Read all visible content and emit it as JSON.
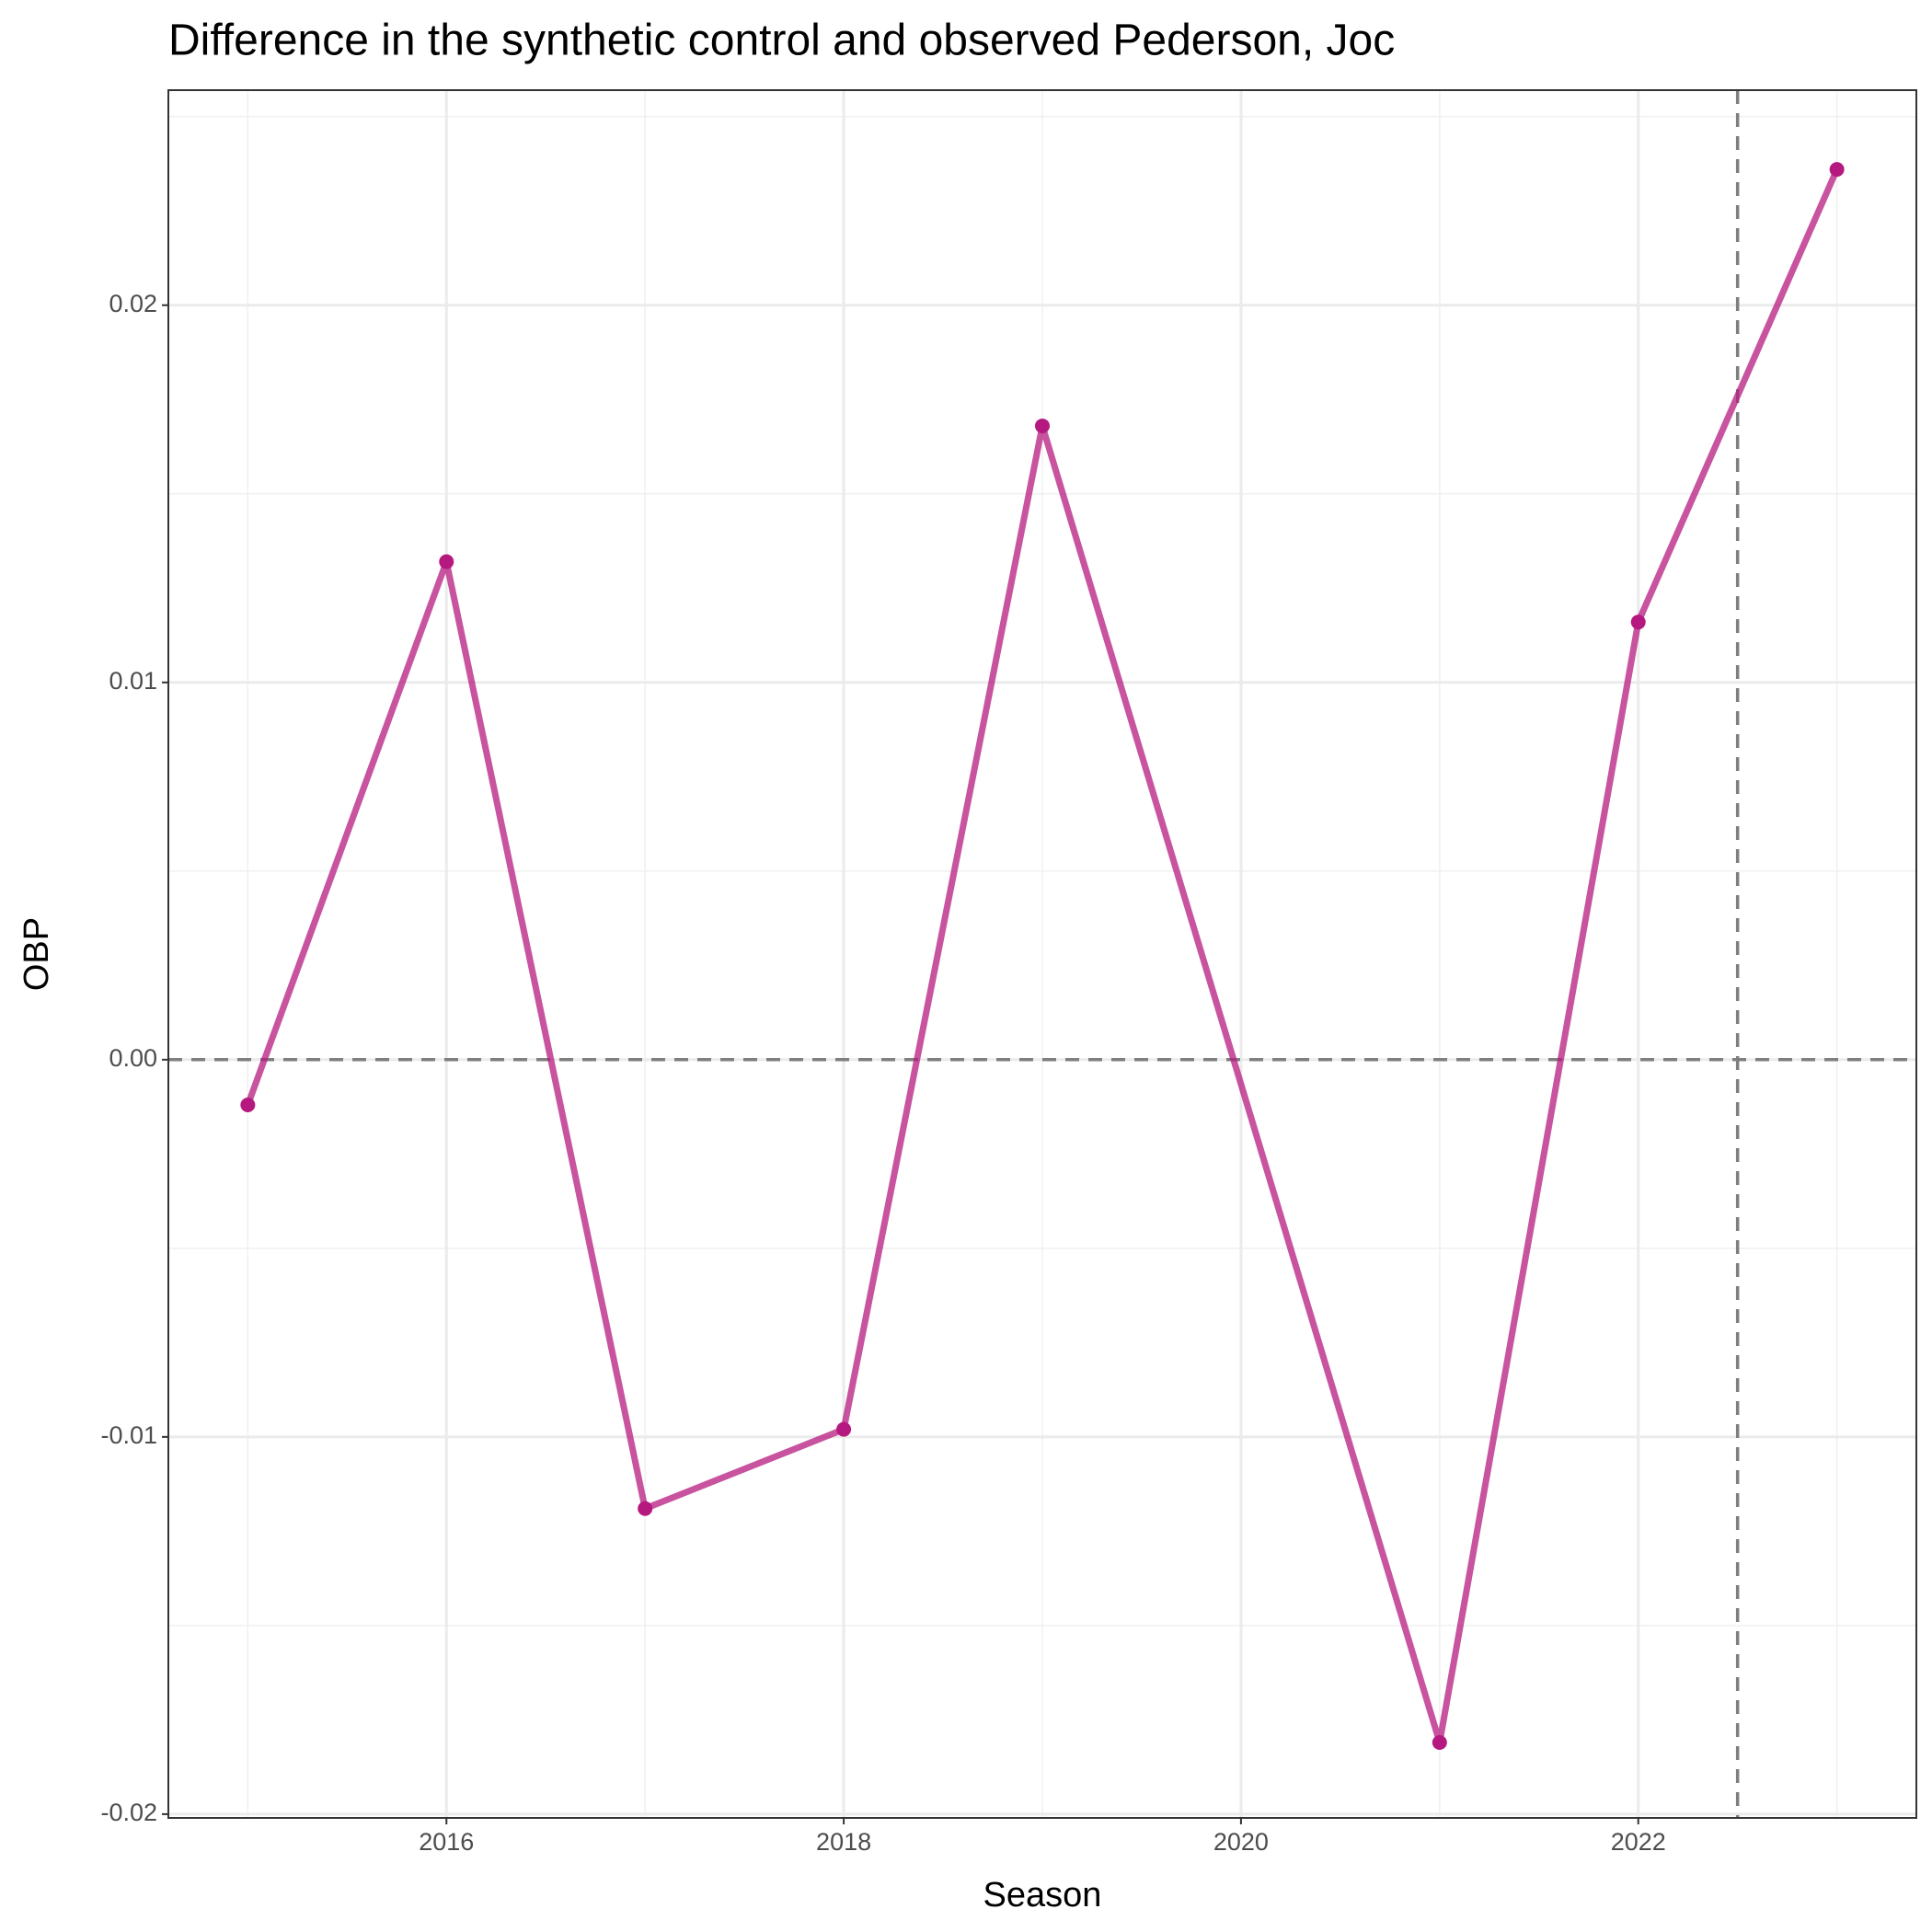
{
  "chart_data": {
    "type": "line",
    "title": "Difference in the synthetic control and observed Pederson, Joc",
    "xlabel": "Season",
    "ylabel": "OBP",
    "x": [
      2015,
      2016,
      2017,
      2018,
      2019,
      2021,
      2022,
      2023
    ],
    "series": [
      {
        "color": "#b5197f",
        "values": [
          -0.0012,
          0.0132,
          -0.0119,
          -0.0098,
          0.0168,
          -0.0181,
          0.0116,
          0.0236
        ]
      }
    ],
    "xlim": [
      2014.6,
      2023.4
    ],
    "xticks": [
      2016,
      2018,
      2020,
      2022
    ],
    "ylim": [
      -0.0201,
      0.0257
    ],
    "yticks": [
      -0.02,
      -0.01,
      {
        "value": 0,
        "label": "0.00"
      },
      0.01,
      0.02
    ],
    "grid": true,
    "reference_lines": {
      "x": [
        2022.5
      ],
      "y": [
        0
      ]
    }
  }
}
